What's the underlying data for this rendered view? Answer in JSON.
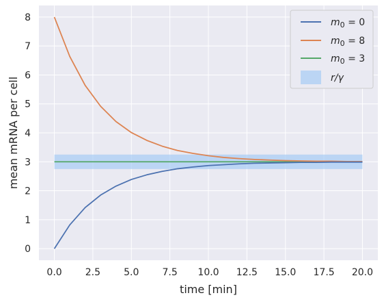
{
  "chart_data": {
    "type": "line",
    "title": "",
    "xlabel": "time [min]",
    "ylabel": "mean mRNA per cell",
    "xlim": [
      -1,
      21
    ],
    "ylim": [
      -0.4,
      8.4
    ],
    "grid": true,
    "legend_position": "top-right",
    "x_ticks": [
      "0.0",
      "2.5",
      "5.0",
      "7.5",
      "10.0",
      "12.5",
      "15.0",
      "17.5",
      "20.0"
    ],
    "y_ticks": [
      "0",
      "1",
      "2",
      "3",
      "4",
      "5",
      "6",
      "7",
      "8"
    ],
    "x": [
      0,
      1,
      2,
      3,
      4,
      5,
      6,
      7,
      8,
      9,
      10,
      11,
      12,
      13,
      14,
      15,
      16,
      17,
      18,
      19,
      20
    ],
    "series": [
      {
        "name": "m₀ = 0",
        "color": "#4c72b0",
        "values": [
          0,
          0.82,
          1.42,
          1.85,
          2.16,
          2.39,
          2.55,
          2.67,
          2.76,
          2.82,
          2.87,
          2.9,
          2.93,
          2.95,
          2.96,
          2.97,
          2.98,
          2.98,
          2.99,
          2.99,
          2.99
        ]
      },
      {
        "name": "m₀ = 8",
        "color": "#dd8452",
        "values": [
          8,
          6.64,
          5.64,
          4.92,
          4.39,
          4.01,
          3.74,
          3.54,
          3.39,
          3.29,
          3.21,
          3.15,
          3.11,
          3.08,
          3.06,
          3.04,
          3.03,
          3.02,
          3.02,
          3.01,
          3.01
        ]
      },
      {
        "name": "m₀ = 3",
        "color": "#55a868",
        "values": [
          3,
          3,
          3,
          3,
          3,
          3,
          3,
          3,
          3,
          3,
          3,
          3,
          3,
          3,
          3,
          3,
          3,
          3,
          3,
          3,
          3
        ]
      }
    ],
    "band": {
      "name": "r/γ",
      "color": "#a1c9f4",
      "x": [
        0,
        20
      ],
      "y_range": [
        2.75,
        3.25
      ]
    },
    "colors": {
      "plot_background": "#eaeaf2",
      "grid": "#ffffff"
    }
  }
}
